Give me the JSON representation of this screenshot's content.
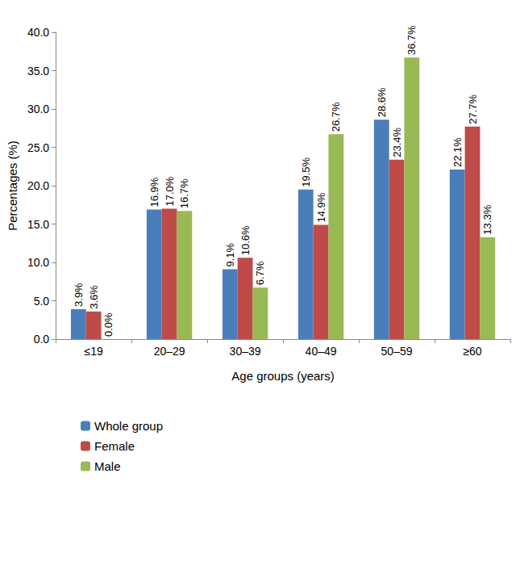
{
  "chart_data": {
    "type": "bar",
    "x_label": "Age groups (years)",
    "y_label": "Percentages (%)",
    "categories": [
      "≤19",
      "20–29",
      "30–39",
      "40–49",
      "50–59",
      "≥60"
    ],
    "series": [
      {
        "name": "Whole group",
        "color": "#4a7ebb",
        "values": [
          3.9,
          16.9,
          9.1,
          19.5,
          28.6,
          22.1
        ],
        "value_labels": [
          "3.9%",
          "16.9%",
          "9.1%",
          "19.5%",
          "28.6%",
          "22.1%"
        ]
      },
      {
        "name": "Female",
        "color": "#be4b48",
        "values": [
          3.6,
          17.0,
          10.6,
          14.9,
          23.4,
          27.7
        ],
        "value_labels": [
          "3.6%",
          "17.0%",
          "10.6%",
          "14.9%",
          "23.4%",
          "27.7%"
        ]
      },
      {
        "name": "Male",
        "color": "#98b954",
        "values": [
          0.0,
          16.7,
          6.7,
          26.7,
          36.7,
          13.3
        ],
        "value_labels": [
          "0.0%",
          "16.7%",
          "6.7%",
          "26.7%",
          "36.7%",
          "13.3%"
        ]
      }
    ],
    "ylim": [
      0,
      40
    ],
    "yticks": [
      {
        "value": 0,
        "label": "0.0"
      },
      {
        "value": 5,
        "label": "5.0"
      },
      {
        "value": 10,
        "label": "10.0"
      },
      {
        "value": 15,
        "label": "15.0"
      },
      {
        "value": 20,
        "label": "20.0"
      },
      {
        "value": 25,
        "label": "25.0"
      },
      {
        "value": 30,
        "label": "30.0"
      },
      {
        "value": 35,
        "label": "35.0"
      },
      {
        "value": 40,
        "label": "40.0"
      }
    ],
    "grid": false,
    "legend": "bottom-left",
    "data_labels": true
  }
}
